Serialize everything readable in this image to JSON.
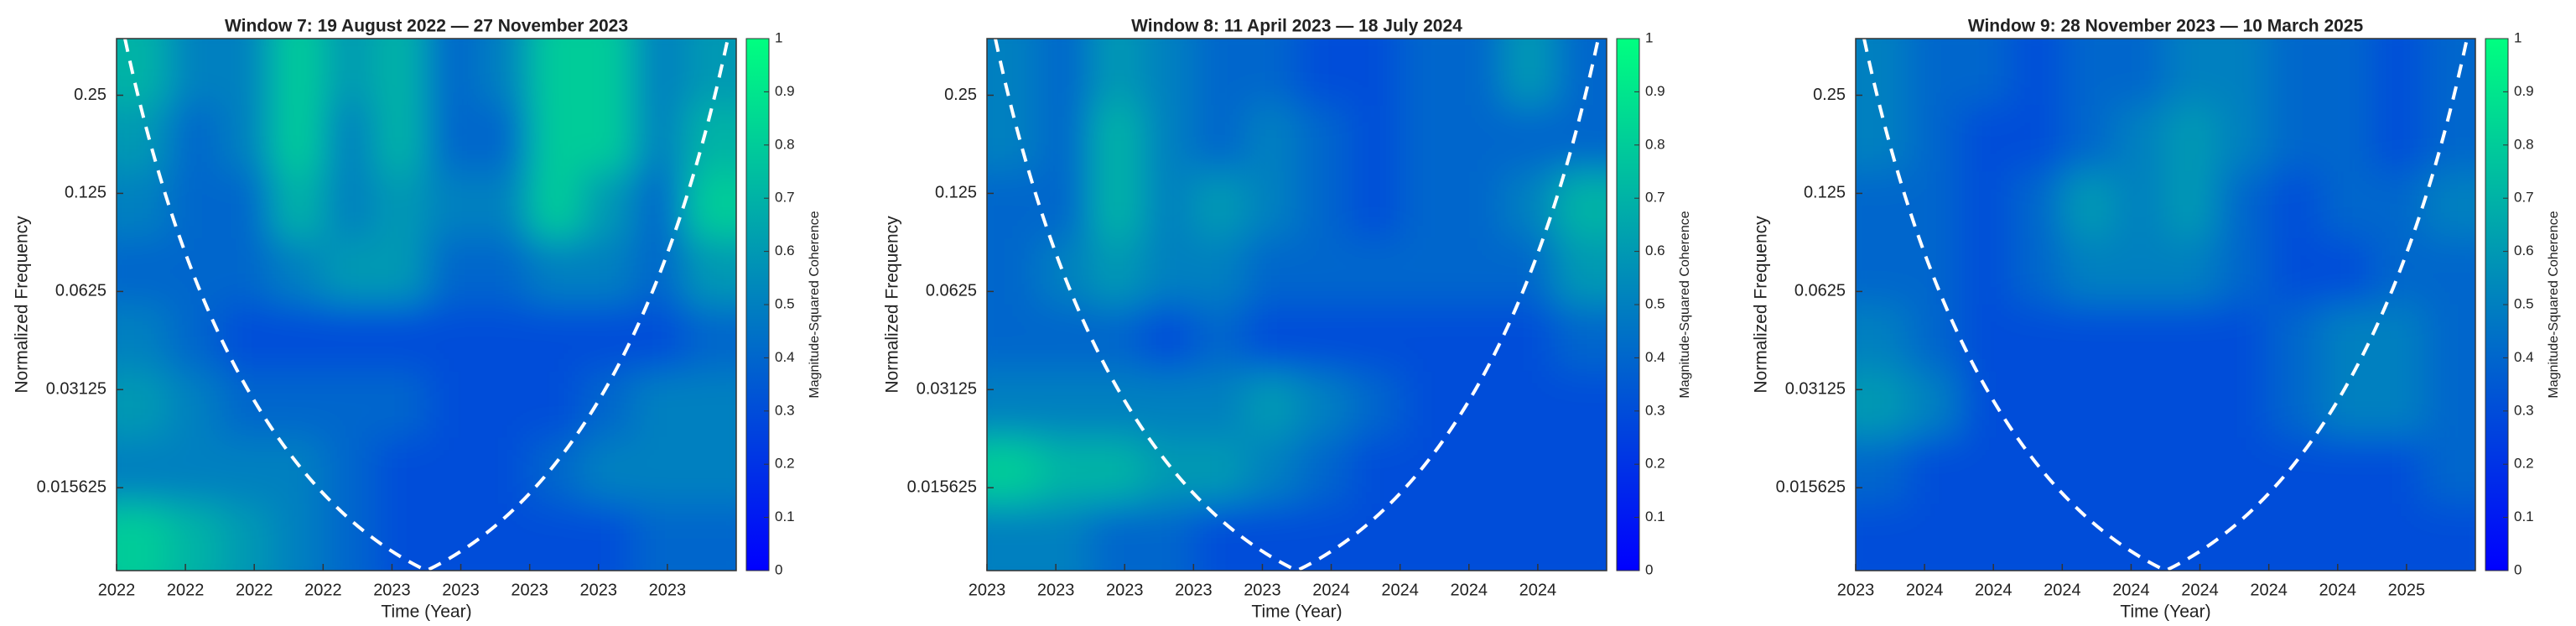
{
  "chart_data": [
    {
      "type": "heatmap",
      "title": "Window 7: 19 August 2022 — 27 November 2023",
      "xlabel": "Time (Year)",
      "ylabel": "Normalized Frequency",
      "xlim": [
        0,
        9
      ],
      "xticks": [
        {
          "value": 0,
          "label": "2022"
        },
        {
          "value": 1,
          "label": "2022"
        },
        {
          "value": 2,
          "label": "2022"
        },
        {
          "value": 3,
          "label": "2022"
        },
        {
          "value": 4,
          "label": "2023"
        },
        {
          "value": 5,
          "label": "2023"
        },
        {
          "value": 6,
          "label": "2023"
        },
        {
          "value": 7,
          "label": "2023"
        },
        {
          "value": 8,
          "label": "2023"
        }
      ],
      "ylim": [
        0.0087,
        0.373
      ],
      "log_scale": true,
      "yticks": [
        0.25,
        0.125,
        0.0625,
        0.03125,
        0.015625
      ],
      "colormap": [
        "#0000ff",
        "#00ff80"
      ],
      "colorbar": {
        "label": "Magnitude-Squared Coherence",
        "lim": [
          0,
          1
        ],
        "ticks": [
          0,
          0.1,
          0.2,
          0.3,
          0.4,
          0.5,
          0.6,
          0.7,
          0.8,
          0.9,
          1
        ]
      },
      "values": [
        [
          0.7,
          0.5,
          0.5,
          0.8,
          0.6,
          0.7,
          0.4,
          0.5,
          0.8,
          0.8,
          0.5,
          0.6
        ],
        [
          0.6,
          0.4,
          0.5,
          0.8,
          0.5,
          0.7,
          0.4,
          0.4,
          0.8,
          0.8,
          0.5,
          0.7
        ],
        [
          0.5,
          0.4,
          0.4,
          0.7,
          0.5,
          0.6,
          0.5,
          0.5,
          0.8,
          0.6,
          0.4,
          0.8
        ],
        [
          0.4,
          0.4,
          0.4,
          0.5,
          0.6,
          0.6,
          0.4,
          0.4,
          0.5,
          0.5,
          0.4,
          0.6
        ],
        [
          0.5,
          0.4,
          0.3,
          0.3,
          0.3,
          0.3,
          0.3,
          0.3,
          0.3,
          0.3,
          0.3,
          0.4
        ],
        [
          0.6,
          0.5,
          0.4,
          0.4,
          0.4,
          0.4,
          0.3,
          0.3,
          0.3,
          0.4,
          0.5,
          0.5
        ],
        [
          0.5,
          0.5,
          0.5,
          0.5,
          0.4,
          0.3,
          0.3,
          0.3,
          0.4,
          0.5,
          0.5,
          0.5
        ],
        [
          0.8,
          0.7,
          0.6,
          0.5,
          0.4,
          0.3,
          0.3,
          0.3,
          0.3,
          0.3,
          0.4,
          0.4
        ]
      ]
    },
    {
      "type": "heatmap",
      "title": "Window 8: 11 April 2023 — 18 July 2024",
      "xlabel": "Time (Year)",
      "ylabel": "Normalized Frequency",
      "xlim": [
        0,
        9
      ],
      "xticks": [
        {
          "value": 0,
          "label": "2023"
        },
        {
          "value": 1,
          "label": "2023"
        },
        {
          "value": 2,
          "label": "2023"
        },
        {
          "value": 3,
          "label": "2023"
        },
        {
          "value": 4,
          "label": "2023"
        },
        {
          "value": 5,
          "label": "2024"
        },
        {
          "value": 6,
          "label": "2024"
        },
        {
          "value": 7,
          "label": "2024"
        },
        {
          "value": 8,
          "label": "2024"
        }
      ],
      "ylim": [
        0.0087,
        0.373
      ],
      "log_scale": true,
      "yticks": [
        0.25,
        0.125,
        0.0625,
        0.03125,
        0.015625
      ],
      "colormap": [
        "#0000ff",
        "#00ff80"
      ],
      "colorbar": {
        "label": "Magnitude-Squared Coherence",
        "lim": [
          0,
          1
        ],
        "ticks": [
          0,
          0.1,
          0.2,
          0.3,
          0.4,
          0.5,
          0.6,
          0.7,
          0.8,
          0.9,
          1
        ]
      },
      "values": [
        [
          0.5,
          0.4,
          0.6,
          0.5,
          0.4,
          0.4,
          0.3,
          0.3,
          0.4,
          0.4,
          0.6,
          0.4
        ],
        [
          0.5,
          0.4,
          0.7,
          0.5,
          0.4,
          0.5,
          0.4,
          0.3,
          0.4,
          0.4,
          0.4,
          0.4
        ],
        [
          0.4,
          0.4,
          0.7,
          0.5,
          0.6,
          0.5,
          0.4,
          0.3,
          0.4,
          0.4,
          0.5,
          0.7
        ],
        [
          0.4,
          0.5,
          0.6,
          0.5,
          0.5,
          0.4,
          0.4,
          0.4,
          0.4,
          0.4,
          0.4,
          0.6
        ],
        [
          0.4,
          0.4,
          0.4,
          0.3,
          0.4,
          0.3,
          0.3,
          0.3,
          0.3,
          0.3,
          0.3,
          0.4
        ],
        [
          0.5,
          0.5,
          0.5,
          0.5,
          0.5,
          0.6,
          0.5,
          0.4,
          0.3,
          0.3,
          0.3,
          0.3
        ],
        [
          0.8,
          0.7,
          0.7,
          0.6,
          0.6,
          0.5,
          0.4,
          0.3,
          0.3,
          0.3,
          0.3,
          0.3
        ],
        [
          0.5,
          0.5,
          0.4,
          0.4,
          0.3,
          0.3,
          0.3,
          0.3,
          0.3,
          0.3,
          0.3,
          0.3
        ]
      ]
    },
    {
      "type": "heatmap",
      "title": "Window 9: 28 November 2023 — 10 March 2025",
      "xlabel": "Time (Year)",
      "ylabel": "Normalized Frequency",
      "xlim": [
        0,
        9
      ],
      "xticks": [
        {
          "value": 0,
          "label": "2023"
        },
        {
          "value": 1,
          "label": "2024"
        },
        {
          "value": 2,
          "label": "2024"
        },
        {
          "value": 3,
          "label": "2024"
        },
        {
          "value": 4,
          "label": "2024"
        },
        {
          "value": 5,
          "label": "2024"
        },
        {
          "value": 6,
          "label": "2024"
        },
        {
          "value": 7,
          "label": "2024"
        },
        {
          "value": 8,
          "label": "2025"
        }
      ],
      "ylim": [
        0.0087,
        0.373
      ],
      "log_scale": true,
      "yticks": [
        0.25,
        0.125,
        0.0625,
        0.03125,
        0.015625
      ],
      "colormap": [
        "#0000ff",
        "#00ff80"
      ],
      "colorbar": {
        "label": "Magnitude-Squared Coherence",
        "lim": [
          0,
          1
        ],
        "ticks": [
          0,
          0.1,
          0.2,
          0.3,
          0.4,
          0.5,
          0.6,
          0.7,
          0.8,
          0.9,
          1
        ]
      },
      "values": [
        [
          0.5,
          0.4,
          0.4,
          0.3,
          0.4,
          0.4,
          0.5,
          0.5,
          0.4,
          0.4,
          0.3,
          0.4
        ],
        [
          0.5,
          0.4,
          0.3,
          0.3,
          0.4,
          0.5,
          0.6,
          0.5,
          0.4,
          0.4,
          0.3,
          0.4
        ],
        [
          0.4,
          0.4,
          0.3,
          0.4,
          0.6,
          0.5,
          0.6,
          0.4,
          0.3,
          0.4,
          0.4,
          0.5
        ],
        [
          0.4,
          0.4,
          0.3,
          0.4,
          0.5,
          0.5,
          0.5,
          0.4,
          0.3,
          0.3,
          0.4,
          0.4
        ],
        [
          0.5,
          0.4,
          0.3,
          0.3,
          0.3,
          0.3,
          0.3,
          0.3,
          0.4,
          0.5,
          0.5,
          0.4
        ],
        [
          0.6,
          0.5,
          0.3,
          0.3,
          0.3,
          0.3,
          0.3,
          0.3,
          0.4,
          0.5,
          0.5,
          0.4
        ],
        [
          0.4,
          0.3,
          0.3,
          0.3,
          0.3,
          0.3,
          0.3,
          0.3,
          0.3,
          0.3,
          0.3,
          0.4
        ],
        [
          0.3,
          0.3,
          0.3,
          0.3,
          0.3,
          0.3,
          0.3,
          0.3,
          0.3,
          0.3,
          0.3,
          0.3
        ]
      ]
    }
  ]
}
